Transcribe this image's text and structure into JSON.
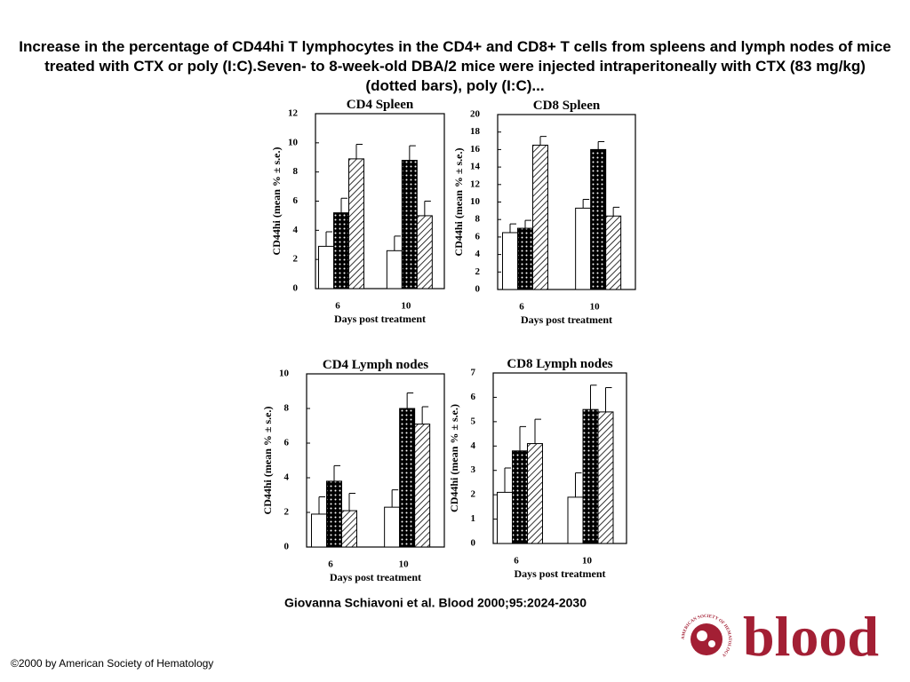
{
  "page": {
    "title": "Increase in the percentage of CD44hi T lymphocytes in the CD4+ and CD8+ T cells from spleens and lymph nodes of mice treated with CTX or poly (I:C).Seven- to 8-week-old DBA/2 mice were injected intraperitoneally with CTX (83 mg/kg) (dotted bars), poly (I:C)...",
    "citation": "Giovanna Schiavoni et al. Blood 2000;95:2024-2030",
    "copyright": "©2000 by American Society of Hematology",
    "logo": "blood",
    "logo_ring": "AMERICAN SOCIETY OF HEMATOLOGY"
  },
  "chart_data": [
    {
      "type": "bar",
      "title": "CD4 Spleen",
      "ylabel": "CD44hi (mean % ± s.e.)",
      "xlabel": "Days post treatment",
      "categories": [
        "6",
        "10"
      ],
      "ylim": [
        0,
        12
      ],
      "yticks": [
        0,
        2,
        4,
        6,
        8,
        10,
        12
      ],
      "series": [
        {
          "color": "#ffffff",
          "pattern": "none",
          "values": [
            2.9,
            2.6
          ],
          "errors": [
            1.0,
            1.0
          ]
        },
        {
          "color": "#000000",
          "pattern": "dots",
          "values": [
            5.2,
            8.8
          ],
          "errors": [
            1.0,
            1.0
          ]
        },
        {
          "color": "#000000",
          "pattern": "hatch",
          "values": [
            8.9,
            5.0
          ],
          "errors": [
            1.0,
            1.0
          ]
        }
      ]
    },
    {
      "type": "bar",
      "title": "CD8 Spleen",
      "ylabel": "CD44hi (mean % ± s.e.)",
      "xlabel": "Days post treatment",
      "categories": [
        "6",
        "10"
      ],
      "ylim": [
        0,
        20
      ],
      "yticks": [
        0,
        2,
        4,
        6,
        8,
        10,
        12,
        14,
        16,
        18,
        20
      ],
      "series": [
        {
          "color": "#ffffff",
          "pattern": "none",
          "values": [
            6.5,
            9.3
          ],
          "errors": [
            1.0,
            1.0
          ]
        },
        {
          "color": "#000000",
          "pattern": "dots",
          "values": [
            7.0,
            16.0
          ],
          "errors": [
            0.9,
            0.9
          ]
        },
        {
          "color": "#000000",
          "pattern": "hatch",
          "values": [
            16.5,
            8.4
          ],
          "errors": [
            1.0,
            1.0
          ]
        }
      ]
    },
    {
      "type": "bar",
      "title": "CD4 Lymph nodes",
      "ylabel": "CD44hi (mean % ± s.e.)",
      "xlabel": "Days post treatment",
      "categories": [
        "6",
        "10"
      ],
      "ylim": [
        0,
        10
      ],
      "yticks": [
        0,
        2,
        4,
        6,
        8,
        10
      ],
      "series": [
        {
          "color": "#ffffff",
          "pattern": "none",
          "values": [
            1.9,
            2.3
          ],
          "errors": [
            1.0,
            1.0
          ]
        },
        {
          "color": "#000000",
          "pattern": "dots",
          "values": [
            3.8,
            8.0
          ],
          "errors": [
            0.9,
            0.9
          ]
        },
        {
          "color": "#000000",
          "pattern": "hatch",
          "values": [
            2.1,
            7.1
          ],
          "errors": [
            1.0,
            1.0
          ]
        }
      ]
    },
    {
      "type": "bar",
      "title": "CD8 Lymph nodes",
      "ylabel": "CD44hi (mean % ± s.e.)",
      "xlabel": "Days post treatment",
      "categories": [
        "6",
        "10"
      ],
      "ylim": [
        0,
        7
      ],
      "yticks": [
        0,
        1,
        2,
        3,
        4,
        5,
        6,
        7
      ],
      "series": [
        {
          "color": "#ffffff",
          "pattern": "none",
          "values": [
            2.1,
            1.9
          ],
          "errors": [
            1.0,
            1.0
          ]
        },
        {
          "color": "#000000",
          "pattern": "dots",
          "values": [
            3.8,
            5.5
          ],
          "errors": [
            1.0,
            1.0
          ]
        },
        {
          "color": "#000000",
          "pattern": "hatch",
          "values": [
            4.1,
            5.4
          ],
          "errors": [
            1.0,
            1.0
          ]
        }
      ]
    }
  ]
}
